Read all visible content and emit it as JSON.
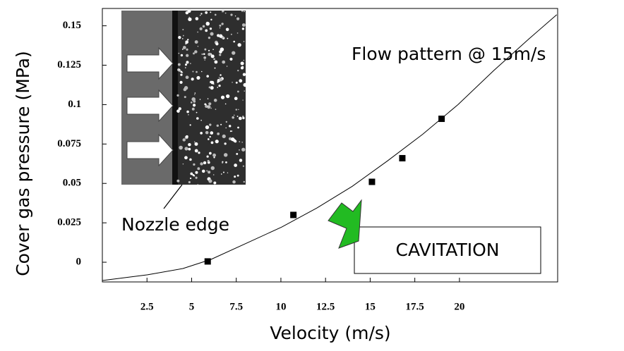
{
  "chart_data": {
    "type": "scatter",
    "xlabel": "Velocity (m/s)",
    "ylabel": "Cover gas pressure (MPa)",
    "x": [
      5.9,
      10.7,
      15.1,
      16.8,
      19.0
    ],
    "values": [
      0.0005,
      0.03,
      0.051,
      0.066,
      0.091
    ],
    "color": "#000000",
    "fit_curve": {
      "x": [
        0,
        2.53,
        4.51,
        6.09,
        8.06,
        10.04,
        12.02,
        14.0,
        15.97,
        17.94,
        19.92,
        21.9,
        23.87,
        25.45
      ],
      "y": [
        -0.0116,
        -0.008,
        -0.004,
        0.0018,
        0.012,
        0.0223,
        0.0344,
        0.0482,
        0.0643,
        0.0812,
        0.1,
        0.1214,
        0.1415,
        0.157
      ]
    },
    "xlim": [
      0,
      25.5
    ],
    "ylim": [
      -0.0125,
      0.161
    ],
    "xticks": [
      2.5,
      5,
      7.5,
      10,
      12.5,
      15,
      17.5,
      20
    ],
    "yticks": [
      0,
      0.025,
      0.05,
      0.075,
      0.1,
      0.125,
      0.15
    ],
    "annotations": {
      "flow": "Flow pattern @ 15m/s",
      "nozzle": "Nozzle edge",
      "cavitation": "CAVITATION"
    }
  }
}
